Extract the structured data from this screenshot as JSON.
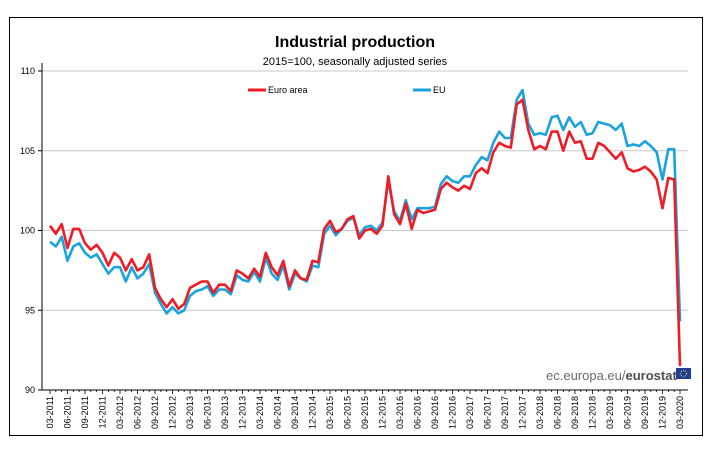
{
  "chart_data": {
    "type": "line",
    "title": "Industrial production",
    "subtitle": "2015=100, seasonally adjusted series",
    "xlabel": "",
    "ylabel": "",
    "ylim": [
      90,
      110
    ],
    "yticks": [
      90,
      95,
      100,
      105,
      110
    ],
    "grid": true,
    "legend_position": "top-center",
    "x_tick_labels": [
      "03-2011",
      "06-2011",
      "09-2011",
      "12-2011",
      "03-2012",
      "06-2012",
      "09-2012",
      "12-2012",
      "03-2013",
      "06-2013",
      "09-2013",
      "12-2013",
      "03-2014",
      "06-2014",
      "09-2014",
      "12-2014",
      "03-2015",
      "06-2015",
      "09-2015",
      "12-2015",
      "03-2016",
      "06-2016",
      "09-2016",
      "12-2016",
      "03-2017",
      "06-2017",
      "09-2017",
      "12-2017",
      "03-2018",
      "06-2018",
      "09-2018",
      "12-2018",
      "03-2019",
      "06-2019",
      "09-2019",
      "12-2019",
      "03-2020"
    ],
    "series": [
      {
        "name": "Euro area",
        "color": "#ee1c25",
        "values": [
          100.3,
          99.8,
          100.4,
          98.9,
          100.1,
          100.1,
          99.2,
          98.8,
          99.1,
          98.6,
          97.8,
          98.6,
          98.3,
          97.5,
          98.2,
          97.5,
          97.7,
          98.5,
          96.4,
          95.7,
          95.2,
          95.7,
          95.1,
          95.4,
          96.4,
          96.6,
          96.8,
          96.8,
          96.1,
          96.6,
          96.6,
          96.2,
          97.5,
          97.3,
          97.0,
          97.6,
          97.1,
          98.6,
          97.7,
          97.2,
          98.1,
          96.5,
          97.5,
          97.0,
          96.9,
          98.1,
          98.0,
          100.1,
          100.6,
          99.9,
          100.1,
          100.7,
          100.9,
          99.5,
          100.0,
          100.1,
          99.8,
          100.3,
          103.4,
          101.0,
          100.4,
          101.7,
          100.1,
          101.3,
          101.1,
          101.2,
          101.3,
          102.6,
          103.0,
          102.7,
          102.5,
          102.8,
          102.6,
          103.6,
          103.9,
          103.6,
          104.9,
          105.5,
          105.3,
          105.2,
          107.9,
          108.2,
          106.3,
          105.1,
          105.3,
          105.1,
          106.2,
          106.2,
          105.0,
          106.2,
          105.5,
          105.6,
          104.5,
          104.5,
          105.5,
          105.3,
          104.9,
          104.5,
          104.9,
          103.9,
          103.7,
          103.8,
          104.0,
          103.7,
          103.2,
          101.4,
          103.3,
          103.2,
          91.5
        ]
      },
      {
        "name": "EU",
        "color": "#1aa3e0",
        "values": [
          99.3,
          99.0,
          99.6,
          98.1,
          99.0,
          99.2,
          98.6,
          98.3,
          98.5,
          97.9,
          97.3,
          97.7,
          97.7,
          96.8,
          97.7,
          97.0,
          97.3,
          97.9,
          96.1,
          95.4,
          94.8,
          95.2,
          94.8,
          95.0,
          95.9,
          96.2,
          96.3,
          96.5,
          95.9,
          96.3,
          96.3,
          96.0,
          97.2,
          96.9,
          96.8,
          97.4,
          96.8,
          98.3,
          97.3,
          96.9,
          97.8,
          96.3,
          97.3,
          97.0,
          96.8,
          97.8,
          97.7,
          99.8,
          100.3,
          99.7,
          100.1,
          100.6,
          100.8,
          99.7,
          100.2,
          100.3,
          100.0,
          100.5,
          103.1,
          101.2,
          100.6,
          101.9,
          100.7,
          101.4,
          101.4,
          101.4,
          101.5,
          102.9,
          103.4,
          103.1,
          103.0,
          103.4,
          103.4,
          104.1,
          104.6,
          104.4,
          105.5,
          106.2,
          105.8,
          105.8,
          108.2,
          108.8,
          106.7,
          106.0,
          106.1,
          106.0,
          107.1,
          107.2,
          106.3,
          107.1,
          106.5,
          106.8,
          106.0,
          106.1,
          106.8,
          106.7,
          106.6,
          106.3,
          106.7,
          105.3,
          105.4,
          105.3,
          105.6,
          105.3,
          104.9,
          103.2,
          105.1,
          105.1,
          94.3
        ]
      }
    ]
  },
  "source": {
    "prefix": "ec.europa.eu/",
    "brand": "eurostat"
  }
}
